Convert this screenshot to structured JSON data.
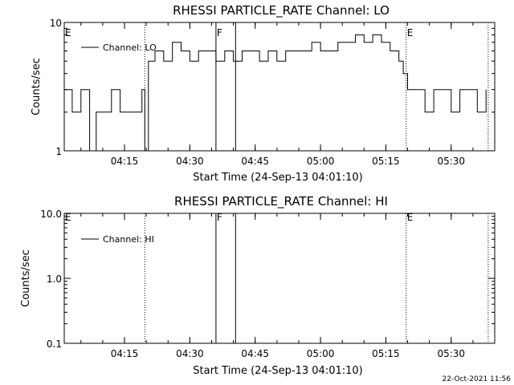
{
  "chart_data": [
    {
      "type": "line",
      "title": "RHESSI PARTICLE_RATE Channel: LO",
      "xlabel": "Start Time (24-Sep-13 04:01:10)",
      "ylabel": "Counts/sec",
      "yscale": "log",
      "ylim": [
        1,
        10
      ],
      "y_tick_labels": [
        "1",
        "10"
      ],
      "xlim": [
        "04:01:10",
        "05:40:00"
      ],
      "x_tick_labels": [
        "04:15",
        "04:30",
        "04:45",
        "05:00",
        "05:15",
        "05:30"
      ],
      "grid": false,
      "legend_position": "top-left",
      "series": [
        {
          "name": "Channel: LO",
          "x": [
            "04:01:10",
            "04:03:00",
            "04:05:00",
            "04:07:00",
            "04:08:30",
            "04:10:00",
            "04:12:00",
            "04:14:00",
            "04:16:00",
            "04:18:00",
            "04:19:00",
            "04:19:40",
            "04:20:30",
            "04:22:00",
            "04:24:00",
            "04:26:00",
            "04:28:00",
            "04:30:00",
            "04:32:00",
            "04:34:00",
            "04:36:00",
            "04:38:00",
            "04:40:00",
            "04:42:00",
            "04:44:00",
            "04:46:00",
            "04:48:00",
            "04:50:00",
            "04:52:00",
            "04:54:00",
            "04:56:00",
            "04:58:00",
            "05:00:00",
            "05:02:00",
            "05:04:00",
            "05:06:00",
            "05:08:00",
            "05:10:00",
            "05:12:00",
            "05:14:00",
            "05:16:00",
            "05:18:00",
            "05:19:00",
            "05:20:00",
            "05:22:00",
            "05:24:00",
            "05:26:00",
            "05:28:00",
            "05:30:00",
            "05:32:00",
            "05:34:00",
            "05:36:00",
            "05:38:00"
          ],
          "y": [
            3,
            2,
            3,
            1,
            2,
            2,
            3,
            2,
            2,
            2,
            3,
            1,
            5,
            6,
            5,
            7,
            6,
            5,
            6,
            6,
            5,
            6,
            5,
            6,
            6,
            5,
            6,
            5,
            6,
            6,
            6,
            7,
            6,
            6,
            7,
            7,
            8,
            7,
            8,
            7,
            6,
            5,
            4,
            3,
            3,
            2,
            3,
            3,
            2,
            3,
            3,
            2,
            3
          ]
        }
      ],
      "vertical_markers": [
        {
          "label": "E",
          "time": "04:01:10",
          "style": "dotted"
        },
        {
          "label": "",
          "time": "04:19:40",
          "style": "dotted"
        },
        {
          "label": "F",
          "time": "04:36:00",
          "style": "solid"
        },
        {
          "label": "",
          "time": "04:40:30",
          "style": "solid"
        },
        {
          "label": "E",
          "time": "05:19:40",
          "style": "dotted"
        },
        {
          "label": "",
          "time": "05:38:30",
          "style": "dotted"
        }
      ]
    },
    {
      "type": "line",
      "title": "RHESSI PARTICLE_RATE Channel: HI",
      "xlabel": "Start Time (24-Sep-13 04:01:10)",
      "ylabel": "Counts/sec",
      "yscale": "log",
      "ylim": [
        0.1,
        10
      ],
      "y_tick_labels": [
        "0.1",
        "1.0",
        "10.0"
      ],
      "xlim": [
        "04:01:10",
        "05:40:00"
      ],
      "x_tick_labels": [
        "04:15",
        "04:30",
        "04:45",
        "05:00",
        "05:15",
        "05:30"
      ],
      "grid": false,
      "legend_position": "top-left",
      "series": [
        {
          "name": "Channel: HI",
          "x": [],
          "y": []
        }
      ],
      "vertical_markers": [
        {
          "label": "E",
          "time": "04:01:10",
          "style": "dotted"
        },
        {
          "label": "",
          "time": "04:19:40",
          "style": "dotted"
        },
        {
          "label": "F",
          "time": "04:36:00",
          "style": "solid"
        },
        {
          "label": "",
          "time": "04:40:30",
          "style": "solid"
        },
        {
          "label": "E",
          "time": "05:19:40",
          "style": "dotted"
        },
        {
          "label": "",
          "time": "05:38:30",
          "style": "dotted"
        }
      ]
    }
  ],
  "footer": {
    "date_stamp": "22-Oct-2021 11:56"
  }
}
